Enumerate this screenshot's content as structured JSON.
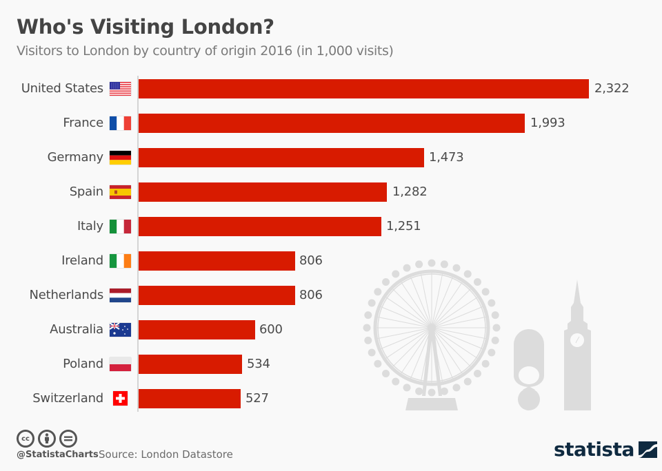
{
  "header": {
    "title": "Who's Visiting London?",
    "subtitle": "Visitors to London by country of origin 2016 (in 1,000 visits)"
  },
  "colors": {
    "bar": "#d81b00",
    "title": "#444444",
    "subtitle": "#7a7a7a",
    "illustration": "#dcdcdc",
    "brand": "#0f2a40",
    "background": "#f9f9f9"
  },
  "chart_data": {
    "type": "bar",
    "orientation": "horizontal",
    "title": "Who's Visiting London?",
    "subtitle": "Visitors to London by country of origin 2016 (in 1,000 visits)",
    "xlabel": "",
    "ylabel": "",
    "categories": [
      "United States",
      "France",
      "Germany",
      "Spain",
      "Italy",
      "Ireland",
      "Netherlands",
      "Australia",
      "Poland",
      "Switzerland"
    ],
    "values": [
      2322,
      1993,
      1473,
      1282,
      1251,
      806,
      806,
      600,
      534,
      527
    ],
    "value_labels": [
      "2,322",
      "1,993",
      "1,473",
      "1,282",
      "1,251",
      "806",
      "806",
      "600",
      "534",
      "527"
    ],
    "units": "1,000 visits",
    "grid": false,
    "legend": null,
    "xlim": [
      0,
      2322
    ]
  },
  "rows": [
    {
      "label": "United States",
      "value": "2,322",
      "flag": "us-flag-icon"
    },
    {
      "label": "France",
      "value": "1,993",
      "flag": "france-flag-icon"
    },
    {
      "label": "Germany",
      "value": "1,473",
      "flag": "germany-flag-icon"
    },
    {
      "label": "Spain",
      "value": "1,282",
      "flag": "spain-flag-icon"
    },
    {
      "label": "Italy",
      "value": "1,251",
      "flag": "italy-flag-icon"
    },
    {
      "label": "Ireland",
      "value": "806",
      "flag": "ireland-flag-icon"
    },
    {
      "label": "Netherlands",
      "value": "806",
      "flag": "netherlands-flag-icon"
    },
    {
      "label": "Australia",
      "value": "600",
      "flag": "australia-flag-icon"
    },
    {
      "label": "Poland",
      "value": "534",
      "flag": "poland-flag-icon"
    },
    {
      "label": "Switzerland",
      "value": "527",
      "flag": "switzerland-flag-icon"
    }
  ],
  "footer": {
    "license_icons": [
      "cc-icon",
      "attribution-icon",
      "no-derivatives-icon"
    ],
    "cc_text": "cc",
    "handle": "@StatistaCharts",
    "source": "Source: London Datastore",
    "brand": "statista"
  }
}
